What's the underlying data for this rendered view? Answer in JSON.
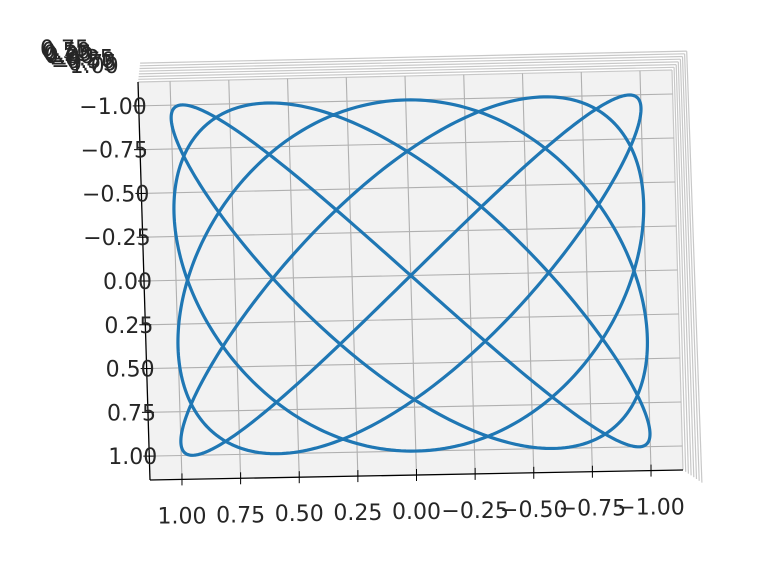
{
  "chart_data": {
    "type": "line",
    "projection": "3d",
    "view": "top-down, slightly tilted",
    "title": "",
    "xlabel": "",
    "ylabel": "",
    "zlabel": "",
    "curve": {
      "kind": "lissajous",
      "x_equation": "sin(4t)",
      "y_equation": "sin(5t + pi/2)",
      "samples": 1200,
      "color": "#1f77b4"
    },
    "x_range": [
      1.0,
      -1.0
    ],
    "y_range": [
      -1.0,
      1.0
    ],
    "x_ticks": [
      "1.00",
      "0.75",
      "0.50",
      "0.25",
      "0.00",
      "−0.25",
      "−0.50",
      "−0.75",
      "−1.00"
    ],
    "y_ticks": [
      "−1.00",
      "−0.75",
      "−0.50",
      "−0.25",
      "0.00",
      "0.25",
      "0.50",
      "0.75",
      "1.00"
    ],
    "z_ticks": [
      "0.75",
      "0.50",
      "0.25",
      "0.00",
      "−0.25",
      "−0.50",
      "−0.75",
      "−1.00"
    ],
    "grid": true,
    "colors": {
      "line": "#1f77b4",
      "pane": "#f2f2f2",
      "grid": "#b0b0b0",
      "axis": "#000000",
      "text": "#262626"
    }
  }
}
